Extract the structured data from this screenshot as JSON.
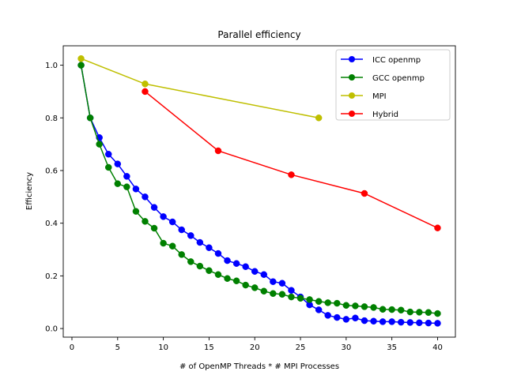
{
  "chart_data": {
    "type": "line",
    "title": "Parallel efficiency",
    "xlabel": "# of OpenMP Threads * # MPI Processes",
    "ylabel": "Efficiency",
    "xlim": [
      -0.95,
      41.95
    ],
    "ylim": [
      -0.0327,
      1.0737
    ],
    "xticks": [
      0,
      5,
      10,
      15,
      20,
      25,
      30,
      35,
      40
    ],
    "yticks": [
      0.0,
      0.2,
      0.4,
      0.6,
      0.8,
      1.0
    ],
    "ytick_labels": [
      "0.0",
      "0.2",
      "0.4",
      "0.6",
      "0.8",
      "1.0"
    ],
    "grid": false,
    "legend_position": "top-right",
    "series": [
      {
        "name": "ICC openmp",
        "color": "#0000ff",
        "x": [
          1,
          2,
          3,
          4,
          5,
          6,
          7,
          8,
          9,
          10,
          11,
          12,
          13,
          14,
          15,
          16,
          17,
          18,
          19,
          20,
          21,
          22,
          23,
          24,
          25,
          26,
          27,
          28,
          29,
          30,
          31,
          32,
          33,
          34,
          35,
          36,
          37,
          38,
          39,
          40
        ],
        "y": [
          1.0,
          0.8,
          0.725,
          0.662,
          0.625,
          0.578,
          0.53,
          0.5,
          0.46,
          0.425,
          0.405,
          0.375,
          0.353,
          0.327,
          0.307,
          0.285,
          0.258,
          0.247,
          0.235,
          0.217,
          0.205,
          0.178,
          0.172,
          0.145,
          0.12,
          0.09,
          0.071,
          0.05,
          0.042,
          0.035,
          0.04,
          0.03,
          0.028,
          0.026,
          0.026,
          0.024,
          0.023,
          0.022,
          0.021,
          0.02
        ]
      },
      {
        "name": "GCC openmp",
        "color": "#008000",
        "x": [
          1,
          2,
          3,
          4,
          5,
          6,
          7,
          8,
          9,
          10,
          11,
          12,
          13,
          14,
          15,
          16,
          17,
          18,
          19,
          20,
          21,
          22,
          23,
          24,
          25,
          26,
          27,
          28,
          29,
          30,
          31,
          32,
          33,
          34,
          35,
          36,
          37,
          38,
          39,
          40
        ],
        "y": [
          1.0,
          0.8,
          0.7,
          0.612,
          0.55,
          0.538,
          0.445,
          0.407,
          0.381,
          0.324,
          0.313,
          0.281,
          0.254,
          0.237,
          0.22,
          0.205,
          0.19,
          0.181,
          0.165,
          0.155,
          0.142,
          0.133,
          0.13,
          0.12,
          0.115,
          0.11,
          0.103,
          0.098,
          0.096,
          0.088,
          0.086,
          0.083,
          0.08,
          0.073,
          0.072,
          0.07,
          0.063,
          0.062,
          0.061,
          0.057
        ]
      },
      {
        "name": "MPI",
        "color": "#bfbf00",
        "x": [
          1,
          8,
          27
        ],
        "y": [
          1.025,
          0.929,
          0.8
        ]
      },
      {
        "name": "Hybrid",
        "color": "#ff0000",
        "x": [
          8,
          16,
          24,
          32,
          40
        ],
        "y": [
          0.9,
          0.675,
          0.584,
          0.513,
          0.382
        ]
      }
    ]
  }
}
